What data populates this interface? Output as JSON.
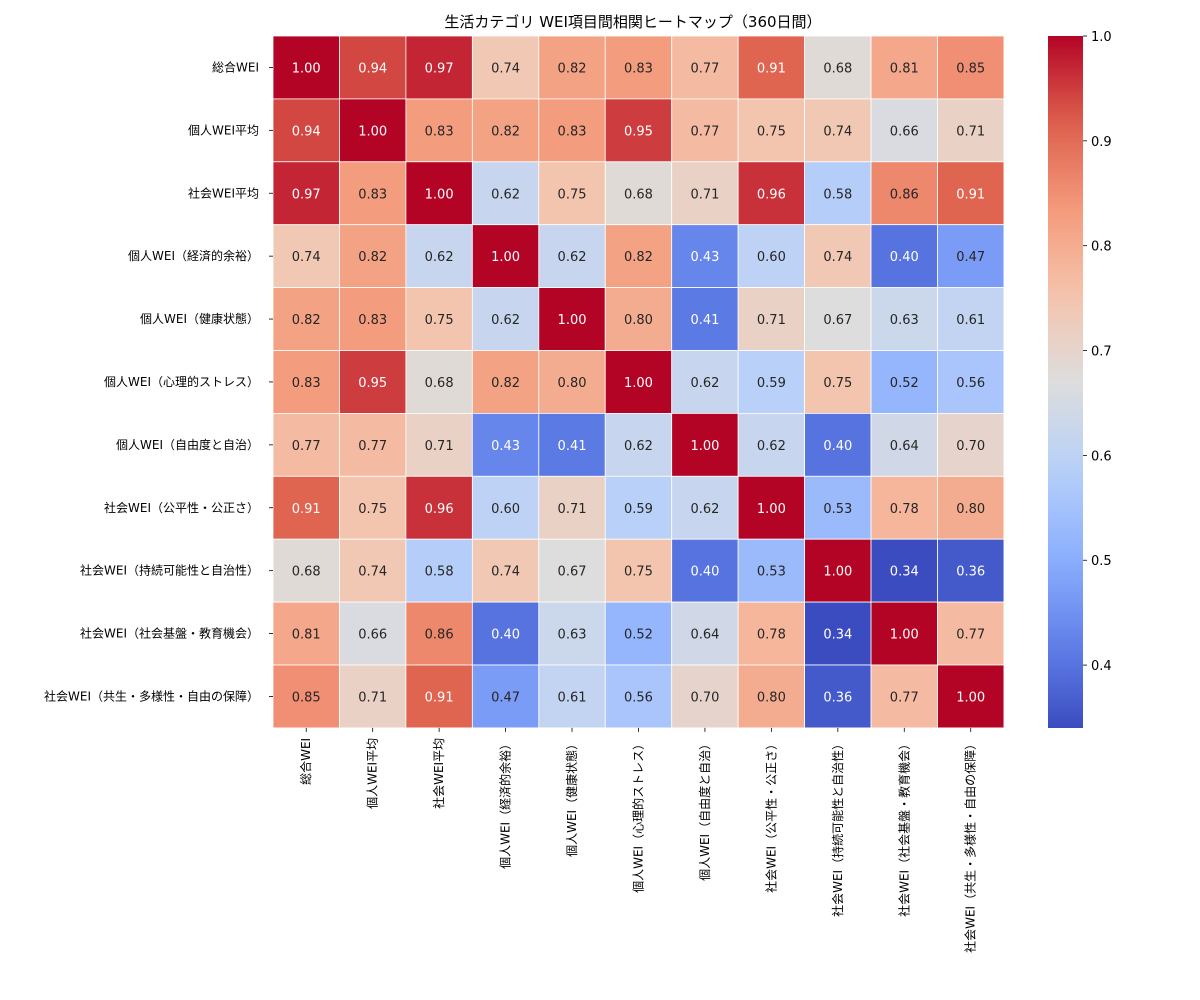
{
  "chart_data": {
    "type": "heatmap",
    "title": "生活カテゴリ WEI項目間相関ヒートマップ（360日間）",
    "labels": [
      "総合WEI",
      "個人WEI平均",
      "社会WEI平均",
      "個人WEI（経済的余裕）",
      "個人WEI（健康状態）",
      "個人WEI（心理的ストレス）",
      "個人WEI（自由度と自治）",
      "社会WEI（公平性・公正さ）",
      "社会WEI（持続可能性と自治性）",
      "社会WEI（社会基盤・教育機会）",
      "社会WEI（共生・多様性・自由の保障）"
    ],
    "matrix": [
      [
        1.0,
        0.94,
        0.97,
        0.74,
        0.82,
        0.83,
        0.77,
        0.91,
        0.68,
        0.81,
        0.85
      ],
      [
        0.94,
        1.0,
        0.83,
        0.82,
        0.83,
        0.95,
        0.77,
        0.75,
        0.74,
        0.66,
        0.71
      ],
      [
        0.97,
        0.83,
        1.0,
        0.62,
        0.75,
        0.68,
        0.71,
        0.96,
        0.58,
        0.86,
        0.91
      ],
      [
        0.74,
        0.82,
        0.62,
        1.0,
        0.62,
        0.82,
        0.43,
        0.6,
        0.74,
        0.4,
        0.47
      ],
      [
        0.82,
        0.83,
        0.75,
        0.62,
        1.0,
        0.8,
        0.41,
        0.71,
        0.67,
        0.63,
        0.61
      ],
      [
        0.83,
        0.95,
        0.68,
        0.82,
        0.8,
        1.0,
        0.62,
        0.59,
        0.75,
        0.52,
        0.56
      ],
      [
        0.77,
        0.77,
        0.71,
        0.43,
        0.41,
        0.62,
        1.0,
        0.62,
        0.4,
        0.64,
        0.7
      ],
      [
        0.91,
        0.75,
        0.96,
        0.6,
        0.71,
        0.59,
        0.62,
        1.0,
        0.53,
        0.78,
        0.8
      ],
      [
        0.68,
        0.74,
        0.58,
        0.74,
        0.67,
        0.75,
        0.4,
        0.53,
        1.0,
        0.34,
        0.36
      ],
      [
        0.81,
        0.66,
        0.86,
        0.4,
        0.63,
        0.52,
        0.64,
        0.78,
        0.34,
        1.0,
        0.77
      ],
      [
        0.85,
        0.71,
        0.91,
        0.47,
        0.61,
        0.56,
        0.7,
        0.8,
        0.36,
        0.77,
        1.0
      ]
    ],
    "value_format": "2 decimals",
    "colormap": "coolwarm",
    "vmin": 0.34,
    "vmax": 1.0,
    "colorbar_ticks": [
      0.4,
      0.5,
      0.6,
      0.7,
      0.8,
      0.9,
      1.0
    ],
    "colorbar_tick_labels": [
      "0.4",
      "0.5",
      "0.6",
      "0.7",
      "0.8",
      "0.9",
      "1.0"
    ],
    "x_tick_rotation": "vertical",
    "cell_border_color": "#ffffff"
  }
}
